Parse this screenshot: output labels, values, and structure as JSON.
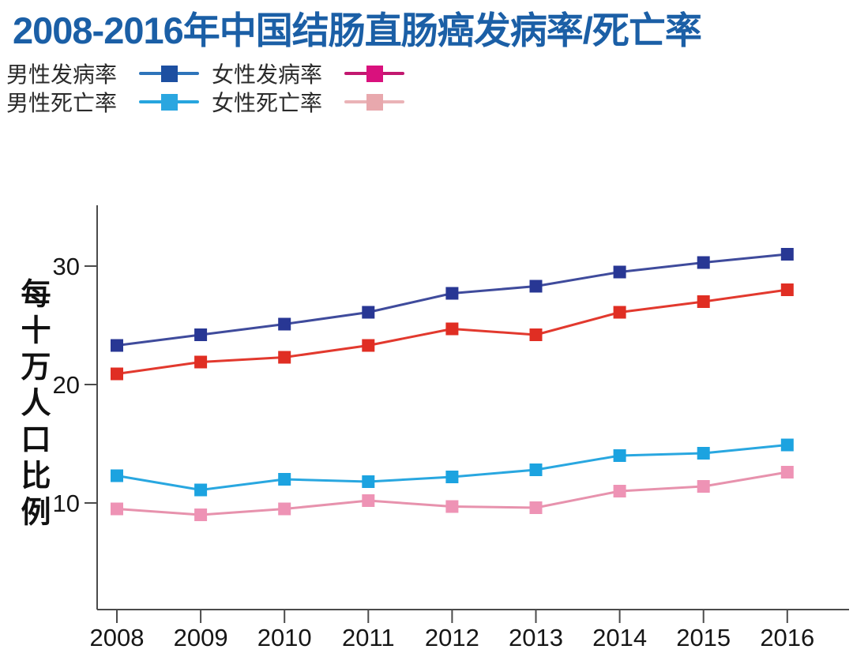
{
  "title": "2008-2016年中国结肠直肠癌发病率/死亡率",
  "colors": {
    "title": "#1b5fa6",
    "axis": "#4b4b4b",
    "tick_label": "#161616"
  },
  "legend": {
    "items": [
      {
        "id": "male-incidence",
        "label": "男性发病率",
        "line_color": "#2e74ba",
        "marker_color": "#1d4fa1"
      },
      {
        "id": "female-incidence",
        "label": "女性发病率",
        "line_color": "#c2186f",
        "marker_color": "#d9117d"
      },
      {
        "id": "male-mortality",
        "label": "男性死亡率",
        "line_color": "#27a5de",
        "marker_color": "#2aa6e0"
      },
      {
        "id": "female-mortality",
        "label": "女性死亡率",
        "line_color": "#eab3b7",
        "marker_color": "#e8a8ad"
      }
    ]
  },
  "y_axis": {
    "title": "每十万人口比例",
    "tick_labels": [
      "30",
      "20",
      "10"
    ]
  },
  "x_axis": {
    "labels": [
      "2008",
      "2009",
      "2010",
      "2011",
      "2012",
      "2013",
      "2014",
      "2015",
      "2016"
    ]
  },
  "chart_data": {
    "type": "line",
    "title": "2008-2016年中国结肠直肠癌发病率/死亡率",
    "xlabel": "",
    "ylabel": "每十万人口比例",
    "categories": [
      2008,
      2009,
      2010,
      2011,
      2012,
      2013,
      2014,
      2015,
      2016
    ],
    "yticks": [
      30,
      20,
      10
    ],
    "ylim": [
      1,
      35
    ],
    "grid": false,
    "legend_position": "top-left",
    "series": [
      {
        "name": "男性发病率",
        "id": "male-incidence",
        "color": "#3f4b9c",
        "marker_color": "#283794",
        "values": [
          23.3,
          24.2,
          25.1,
          26.1,
          27.7,
          28.3,
          29.5,
          30.3,
          31.0
        ]
      },
      {
        "name": "女性发病率",
        "id": "female-incidence",
        "color": "#e2392e",
        "marker_color": "#e02e23",
        "values": [
          20.9,
          21.9,
          22.3,
          23.3,
          24.7,
          24.2,
          26.1,
          27.0,
          28.0
        ]
      },
      {
        "name": "男性死亡率",
        "id": "male-mortality",
        "color": "#29a7e0",
        "marker_color": "#1ca3e0",
        "values": [
          12.3,
          11.1,
          12.0,
          11.8,
          12.2,
          12.8,
          14.0,
          14.2,
          14.9
        ]
      },
      {
        "name": "女性死亡率",
        "id": "female-mortality",
        "color": "#e792ad",
        "marker_color": "#ee93b5",
        "values": [
          9.5,
          9.0,
          9.5,
          10.2,
          9.7,
          9.6,
          11.0,
          11.4,
          12.6
        ]
      }
    ]
  }
}
